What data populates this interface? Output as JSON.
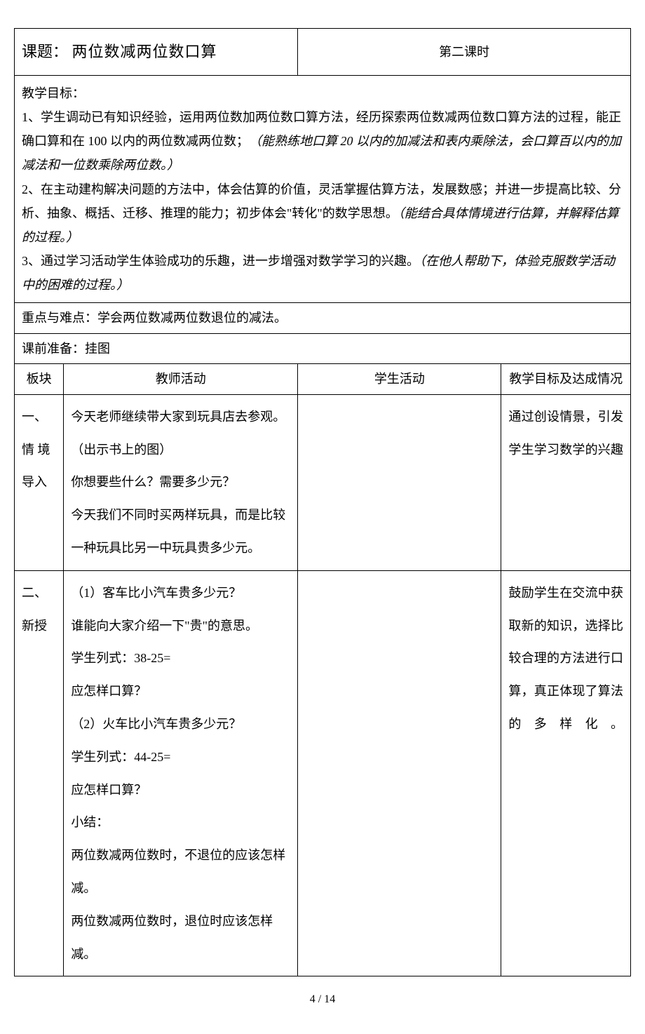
{
  "title_row": {
    "label": "课题：",
    "topic": "两位数减两位数口算",
    "lesson": "第二课时"
  },
  "objectives": {
    "heading": "教学目标：",
    "p1": "1、学生调动已有知识经验，运用两位数加两位数口算方法，经历探索两位数减两位数口算方法的过程，能正确口算和在 100 以内的两位数减两位数；",
    "p1_note": "（能熟练地口算 20 以内的加减法和表内乘除法，会口算百以内的加减法和一位数乘除两位数。）",
    "p2": "2、在主动建构解决问题的方法中，体会估算的价值，灵活掌握估算方法，发展数感；并进一步提高比较、分析、抽象、概括、迁移、推理的能力；初步体会\"转化\"的数学思想。",
    "p2_note": "（能结合具体情境进行估算，并解释估算的过程。）",
    "p3": "3、通过学习活动学生体验成功的乐趣，进一步增强对数学学习的兴趣。",
    "p3_note": "（在他人帮助下，体验克服数学活动中的困难的过程。）"
  },
  "key_points": "重点与难点：学会两位数减两位数退位的减法。",
  "prep": "课前准备：挂图",
  "table_header": {
    "bankuai": "板块",
    "teacher": "教师活动",
    "student": "学生活动",
    "goal": "教学目标及达成情况"
  },
  "rows": [
    {
      "bankuai": "一、\n情 境\n导入",
      "teacher": "今天老师继续带大家到玩具店去参观。（出示书上的图）\n你想要些什么？需要多少元？\n今天我们不同时买两样玩具，而是比较一种玩具比另一中玩具贵多少元。",
      "student": "",
      "goal": "通过创设情景，引发学生学习数学的兴趣"
    },
    {
      "bankuai": "二、\n新授",
      "teacher": "（1）客车比小汽车贵多少元？\n谁能向大家介绍一下\"贵\"的意思。\n学生列式：38-25=\n应怎样口算？\n（2）火车比小汽车贵多少元？\n学生列式：44-25=\n应怎样口算？\n小结：\n两位数减两位数时，不退位的应该怎样减。\n两位数减两位数时，退位时应该怎样减。",
      "student": "",
      "goal": "鼓励学生在交流中获取新的知识，选择比较合理的方法进行口算，真正体现了算法的多样化。"
    }
  ],
  "page_number": "4 / 14"
}
